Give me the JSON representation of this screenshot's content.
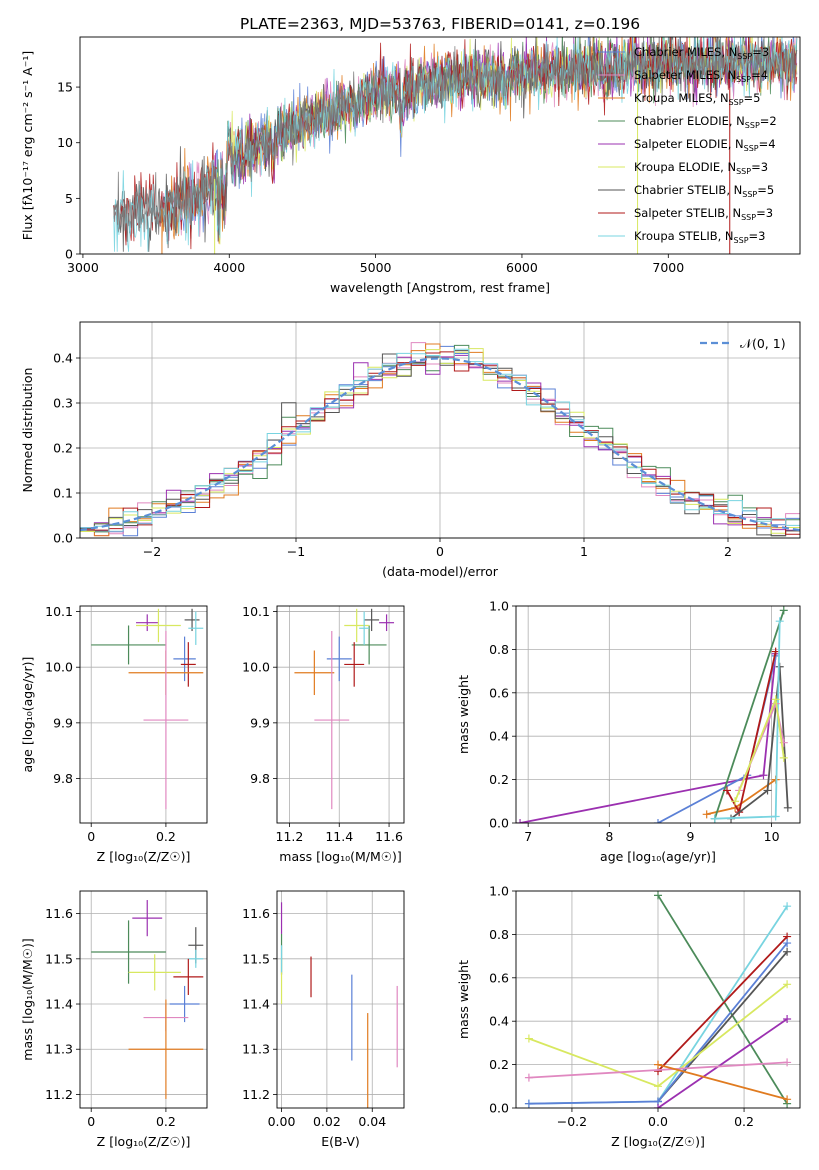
{
  "figure_title": "PLATE=2363, MJD=53763, FIBERID=0141, z=0.196",
  "colors": {
    "Chabrier MILES": "#5b80d6",
    "Salpeter MILES": "#e088c0",
    "Kroupa MILES": "#e07b20",
    "Chabrier ELODIE": "#4c8b5a",
    "Salpeter ELODIE": "#9b30b0",
    "Kroupa ELODIE": "#d8e860",
    "Chabrier STELIB": "#555555",
    "Salpeter STELIB": "#b01a1a",
    "Kroupa STELIB": "#78d4e0",
    "gaussian": "#5b8fd6"
  },
  "chart_data": [
    {
      "id": "spectrum",
      "type": "line",
      "xlabel": "wavelength [Angstrom, rest frame]",
      "ylabel": "Flux [fλ10⁻¹⁷ erg cm⁻² s⁻¹ A⁻¹]",
      "xlim": [
        2980,
        7900
      ],
      "ylim": [
        0,
        19.5
      ],
      "xticks": [
        3000,
        4000,
        5000,
        6000,
        7000
      ],
      "yticks": [
        0,
        5,
        10,
        15
      ],
      "grid": false,
      "legend_position": "upper-right",
      "spectrum_range": [
        3210,
        7880
      ],
      "continuum": [
        [
          3210,
          3.5
        ],
        [
          3500,
          3.9
        ],
        [
          3800,
          5.0
        ],
        [
          4000,
          8.5
        ],
        [
          4300,
          10.5
        ],
        [
          4600,
          12.2
        ],
        [
          5000,
          14.5
        ],
        [
          5500,
          15.7
        ],
        [
          6000,
          16.2
        ],
        [
          6500,
          16.8
        ],
        [
          7000,
          17.1
        ],
        [
          7500,
          17.2
        ],
        [
          7880,
          17.4
        ]
      ],
      "features": [
        [
          3933,
          -4.5
        ],
        [
          3968,
          -3.5
        ],
        [
          4000,
          1.5
        ],
        [
          4102,
          -1.0
        ],
        [
          4300,
          -1.8
        ],
        [
          4861,
          -1.2
        ],
        [
          5175,
          -3.0
        ],
        [
          5270,
          -1.0
        ],
        [
          5890,
          -1.5
        ],
        [
          6563,
          -1.0
        ]
      ],
      "series": [
        {
          "name": "Chabrier MILES",
          "nssp": "3",
          "start": 3540
        },
        {
          "name": "Salpeter MILES",
          "nssp": "4",
          "start": 3540
        },
        {
          "name": "Kroupa MILES",
          "nssp": "5",
          "start": 3540
        },
        {
          "name": "Chabrier ELODIE",
          "nssp": "2",
          "start": 3900
        },
        {
          "name": "Salpeter ELODIE",
          "nssp": "4",
          "start": 3900
        },
        {
          "name": "Kroupa ELODIE",
          "nssp": "3",
          "start": 3900
        },
        {
          "name": "Chabrier STELIB",
          "nssp": "5",
          "start": 3210
        },
        {
          "name": "Salpeter STELIB",
          "nssp": "3",
          "start": 3210
        },
        {
          "name": "Kroupa STELIB",
          "nssp": "3",
          "start": 3210
        }
      ],
      "legend_prefix_nssp": "N",
      "legend_sub_nssp": "SSP",
      "drops": [
        {
          "x": 3540,
          "color": "#e07b20"
        },
        {
          "x": 3900,
          "color": "#d8e860"
        },
        {
          "x": 6790,
          "color": "#d8e860"
        },
        {
          "x": 7420,
          "color": "#b01a1a"
        }
      ]
    },
    {
      "id": "residuals",
      "type": "histogram",
      "xlabel": "(data-model)/error",
      "ylabel": "Normed distribution",
      "xlim": [
        -2.5,
        2.5
      ],
      "ylim": [
        0,
        0.48
      ],
      "xticks": [
        -2,
        -1,
        0,
        1,
        2
      ],
      "xtick_labels": [
        "−2",
        "−1",
        "0",
        "1",
        "2"
      ],
      "yticks": [
        0.0,
        0.1,
        0.2,
        0.3,
        0.4
      ],
      "grid": true,
      "bin_width": 0.1,
      "legend": "𝒩(0, 1)",
      "legend_position": "upper-right"
    },
    {
      "id": "age_vs_Z",
      "type": "errorbar",
      "xlabel": "Z [log₁₀(Z/Z☉)]",
      "ylabel": "age  [log₁₀(age/yr)]",
      "xlim": [
        -0.03,
        0.31
      ],
      "ylim": [
        9.72,
        10.11
      ],
      "xticks": [
        0.0,
        0.2
      ],
      "yticks": [
        9.8,
        9.9,
        10.0,
        10.1
      ],
      "grid": true,
      "points": [
        {
          "series": "Chabrier ELODIE",
          "x": 0.1,
          "xerr": 0.1,
          "y": 10.04,
          "yerr": 0.035
        },
        {
          "series": "Salpeter ELODIE",
          "x": 0.15,
          "xerr": 0.03,
          "y": 10.08,
          "yerr": 0.015
        },
        {
          "series": "Kroupa ELODIE",
          "x": 0.18,
          "xerr": 0.06,
          "y": 10.075,
          "yerr": 0.03
        },
        {
          "series": "Chabrier STELIB",
          "x": 0.27,
          "xerr": 0.02,
          "y": 10.085,
          "yerr": 0.02
        },
        {
          "series": "Kroupa STELIB",
          "x": 0.28,
          "xerr": 0.02,
          "y": 10.07,
          "yerr": 0.03
        },
        {
          "series": "Chabrier MILES",
          "x": 0.25,
          "xerr": 0.03,
          "y": 10.015,
          "yerr": 0.04
        },
        {
          "series": "Salpeter STELIB",
          "x": 0.26,
          "xerr": 0.02,
          "y": 10.005,
          "yerr": 0.04
        },
        {
          "series": "Kroupa MILES",
          "x": 0.2,
          "xerr": 0.1,
          "y": 9.99,
          "yerr": 0.04
        },
        {
          "series": "Salpeter MILES",
          "x": 0.2,
          "xerr": 0.06,
          "y": 9.905,
          "yerr": 0.16
        }
      ]
    },
    {
      "id": "age_vs_mass",
      "type": "errorbar",
      "xlabel": "mass [log₁₀(M/M☉)]",
      "ylabel": "",
      "xlim": [
        11.15,
        11.66
      ],
      "ylim": [
        9.72,
        10.11
      ],
      "xticks": [
        11.2,
        11.4,
        11.6
      ],
      "yticks": [
        9.8,
        9.9,
        10.0,
        10.1
      ],
      "grid": true,
      "points": [
        {
          "series": "Chabrier ELODIE",
          "x": 11.52,
          "xerr": 0.07,
          "y": 10.04,
          "yerr": 0.035
        },
        {
          "series": "Salpeter ELODIE",
          "x": 11.59,
          "xerr": 0.03,
          "y": 10.08,
          "yerr": 0.015
        },
        {
          "series": "Kroupa ELODIE",
          "x": 11.47,
          "xerr": 0.05,
          "y": 10.075,
          "yerr": 0.03
        },
        {
          "series": "Chabrier STELIB",
          "x": 11.53,
          "xerr": 0.03,
          "y": 10.085,
          "yerr": 0.02
        },
        {
          "series": "Kroupa STELIB",
          "x": 11.5,
          "xerr": 0.02,
          "y": 10.07,
          "yerr": 0.03
        },
        {
          "series": "Chabrier MILES",
          "x": 11.4,
          "xerr": 0.05,
          "y": 10.015,
          "yerr": 0.04
        },
        {
          "series": "Salpeter STELIB",
          "x": 11.46,
          "xerr": 0.04,
          "y": 10.005,
          "yerr": 0.04
        },
        {
          "series": "Kroupa MILES",
          "x": 11.3,
          "xerr": 0.08,
          "y": 9.99,
          "yerr": 0.04
        },
        {
          "series": "Salpeter MILES",
          "x": 11.37,
          "xerr": 0.07,
          "y": 9.905,
          "yerr": 0.16
        }
      ]
    },
    {
      "id": "weight_vs_age",
      "type": "line",
      "xlabel": "age  [log₁₀(age/yr)]",
      "ylabel": "mass weight",
      "xlim": [
        6.85,
        10.35
      ],
      "ylim": [
        0,
        1
      ],
      "xticks": [
        7,
        8,
        9,
        10
      ],
      "yticks": [
        0.0,
        0.2,
        0.4,
        0.6,
        0.8,
        1.0
      ],
      "grid": true,
      "series": [
        {
          "name": "Salpeter ELODIE",
          "points": [
            [
              6.9,
              0.0
            ],
            [
              9.9,
              0.22
            ],
            [
              10.05,
              0.78
            ]
          ]
        },
        {
          "name": "Chabrier MILES",
          "points": [
            [
              8.6,
              0.0
            ],
            [
              9.7,
              0.22
            ],
            [
              10.05,
              0.77
            ]
          ]
        },
        {
          "name": "Kroupa MILES",
          "points": [
            [
              9.2,
              0.04
            ],
            [
              9.55,
              0.07
            ],
            [
              10.05,
              0.2
            ]
          ]
        },
        {
          "name": "Chabrier ELODIE",
          "points": [
            [
              9.3,
              0.02
            ],
            [
              10.15,
              0.98
            ]
          ]
        },
        {
          "name": "Salpeter STELIB",
          "points": [
            [
              9.45,
              0.15
            ],
            [
              9.6,
              0.05
            ],
            [
              10.05,
              0.79
            ]
          ]
        },
        {
          "name": "Chabrier STELIB",
          "points": [
            [
              9.5,
              0.02
            ],
            [
              9.95,
              0.15
            ],
            [
              10.1,
              0.72
            ],
            [
              10.2,
              0.07
            ]
          ]
        },
        {
          "name": "Kroupa STELIB",
          "points": [
            [
              9.3,
              0.02
            ],
            [
              10.05,
              0.03
            ],
            [
              10.1,
              0.93
            ]
          ]
        },
        {
          "name": "Salpeter MILES",
          "points": [
            [
              9.6,
              0.15
            ],
            [
              10.05,
              0.55
            ],
            [
              10.15,
              0.37
            ]
          ]
        },
        {
          "name": "Kroupa ELODIE",
          "points": [
            [
              9.55,
              0.1
            ],
            [
              10.05,
              0.57
            ],
            [
              10.15,
              0.3
            ]
          ]
        }
      ]
    },
    {
      "id": "mass_vs_Z",
      "type": "errorbar",
      "xlabel": "Z [log₁₀(Z/Z☉)]",
      "ylabel": "mass [log₁₀(M/M☉)]",
      "xlim": [
        -0.03,
        0.31
      ],
      "ylim": [
        11.17,
        11.65
      ],
      "xticks": [
        0.0,
        0.2
      ],
      "yticks": [
        11.2,
        11.3,
        11.4,
        11.5,
        11.6
      ],
      "grid": true,
      "points": [
        {
          "series": "Salpeter ELODIE",
          "x": 0.15,
          "xerr": 0.04,
          "y": 11.59,
          "yerr": 0.04
        },
        {
          "series": "Chabrier ELODIE",
          "x": 0.1,
          "xerr": 0.1,
          "y": 11.515,
          "yerr": 0.07
        },
        {
          "series": "Kroupa ELODIE",
          "x": 0.17,
          "xerr": 0.07,
          "y": 11.47,
          "yerr": 0.04
        },
        {
          "series": "Chabrier STELIB",
          "x": 0.28,
          "xerr": 0.02,
          "y": 11.53,
          "yerr": 0.04
        },
        {
          "series": "Kroupa STELIB",
          "x": 0.28,
          "xerr": 0.02,
          "y": 11.5,
          "yerr": 0.02
        },
        {
          "series": "Salpeter STELIB",
          "x": 0.26,
          "xerr": 0.04,
          "y": 11.46,
          "yerr": 0.04
        },
        {
          "series": "Chabrier MILES",
          "x": 0.25,
          "xerr": 0.04,
          "y": 11.4,
          "yerr": 0.04
        },
        {
          "series": "Salpeter MILES",
          "x": 0.2,
          "xerr": 0.06,
          "y": 11.37,
          "yerr": 0.03
        },
        {
          "series": "Kroupa MILES",
          "x": 0.2,
          "xerr": 0.1,
          "y": 11.3,
          "yerr": 0.11
        }
      ]
    },
    {
      "id": "mass_vs_ebv",
      "type": "errorbar",
      "xlabel": "E(B-V)",
      "ylabel": "",
      "xlim": [
        -0.002,
        0.054
      ],
      "ylim": [
        11.17,
        11.65
      ],
      "xticks": [
        0.0,
        0.02,
        0.04
      ],
      "xtick_labels": [
        "0.00",
        "0.02",
        "0.04"
      ],
      "yticks": [
        11.2,
        11.3,
        11.4,
        11.5,
        11.6
      ],
      "grid": true,
      "points": [
        {
          "series": "Salpeter ELODIE",
          "x": 0.0,
          "xerr": 0,
          "y": 11.59,
          "yerr": 0.035
        },
        {
          "series": "Chabrier ELODIE",
          "x": 0.0,
          "xerr": 0,
          "y": 11.51,
          "yerr": 0.045
        },
        {
          "series": "Kroupa ELODIE",
          "x": 0.0,
          "xerr": 0,
          "y": 11.45,
          "yerr": 0.05
        },
        {
          "series": "Kroupa STELIB",
          "x": 0.0,
          "xerr": 0,
          "y": 11.5,
          "yerr": 0.03
        },
        {
          "series": "Salpeter STELIB",
          "x": 0.013,
          "xerr": 0,
          "y": 11.46,
          "yerr": 0.045
        },
        {
          "series": "Chabrier MILES",
          "x": 0.031,
          "xerr": 0,
          "y": 11.37,
          "yerr": 0.095
        },
        {
          "series": "Kroupa MILES",
          "x": 0.038,
          "xerr": 0,
          "y": 11.25,
          "yerr": 0.13
        },
        {
          "series": "Salpeter MILES",
          "x": 0.051,
          "xerr": 0,
          "y": 11.35,
          "yerr": 0.09
        }
      ]
    },
    {
      "id": "weight_vs_Z",
      "type": "line",
      "xlabel": "Z [log₁₀(Z/Z☉)]",
      "ylabel": "mass weight",
      "xlim": [
        -0.33,
        0.33
      ],
      "ylim": [
        0,
        1
      ],
      "xticks": [
        -0.2,
        0.0,
        0.2
      ],
      "xtick_labels": [
        "−0.2",
        "0.0",
        "0.2"
      ],
      "yticks": [
        0.0,
        0.2,
        0.4,
        0.6,
        0.8,
        1.0
      ],
      "grid": true,
      "series": [
        {
          "name": "Chabrier ELODIE",
          "points": [
            [
              0.0,
              0.98
            ],
            [
              0.3,
              0.02
            ]
          ]
        },
        {
          "name": "Kroupa STELIB",
          "points": [
            [
              -0.3,
              0.02
            ],
            [
              0.0,
              0.03
            ],
            [
              0.3,
              0.93
            ]
          ]
        },
        {
          "name": "Salpeter STELIB",
          "points": [
            [
              0.0,
              0.17
            ],
            [
              0.3,
              0.79
            ]
          ]
        },
        {
          "name": "Chabrier STELIB",
          "points": [
            [
              0.0,
              0.03
            ],
            [
              0.3,
              0.72
            ]
          ]
        },
        {
          "name": "Chabrier MILES",
          "points": [
            [
              -0.3,
              0.02
            ],
            [
              0.0,
              0.03
            ],
            [
              0.3,
              0.76
            ]
          ]
        },
        {
          "name": "Kroupa ELODIE",
          "points": [
            [
              -0.3,
              0.32
            ],
            [
              0.0,
              0.1
            ],
            [
              0.3,
              0.57
            ]
          ]
        },
        {
          "name": "Salpeter ELODIE",
          "points": [
            [
              0.0,
              0.0
            ],
            [
              0.3,
              0.41
            ]
          ]
        },
        {
          "name": "Salpeter MILES",
          "points": [
            [
              -0.3,
              0.14
            ],
            [
              0.3,
              0.21
            ]
          ]
        },
        {
          "name": "Kroupa MILES",
          "points": [
            [
              0.0,
              0.2
            ],
            [
              0.3,
              0.04
            ]
          ]
        }
      ]
    }
  ]
}
